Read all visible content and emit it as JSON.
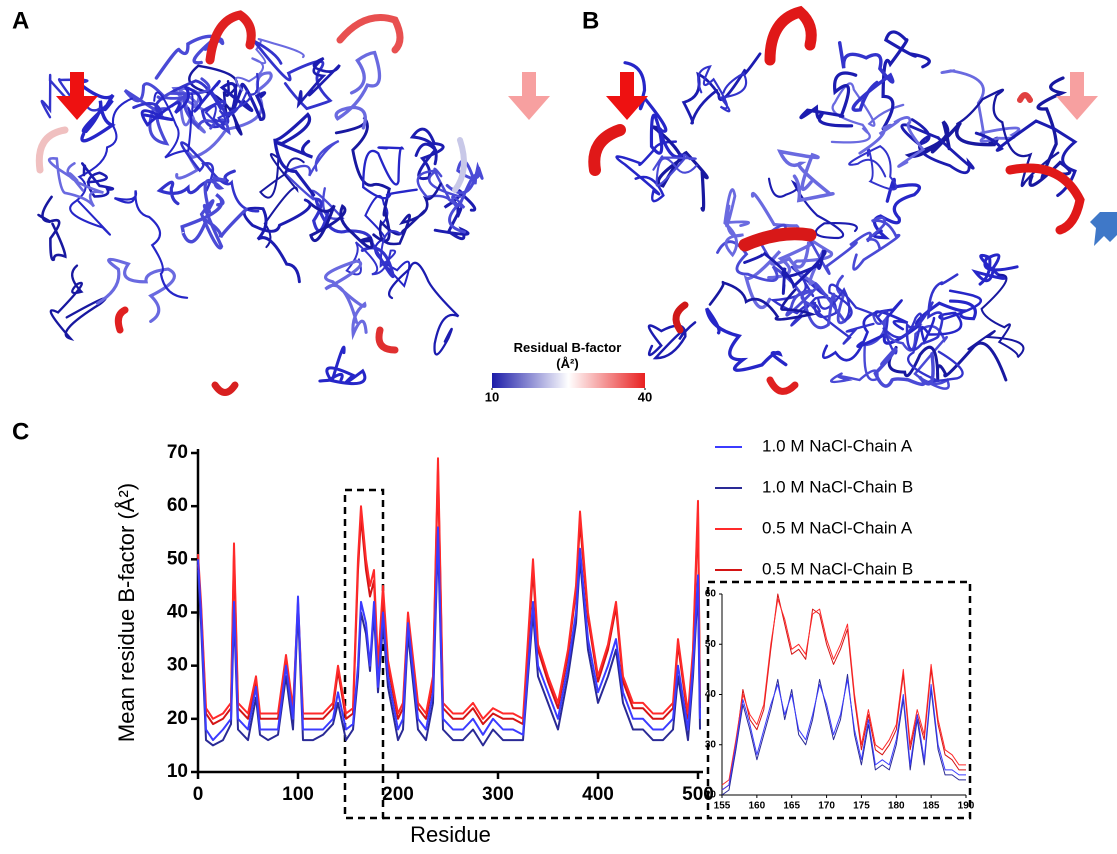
{
  "panels": {
    "a": "A",
    "b": "B",
    "c": "C"
  },
  "colorbar": {
    "title": "Residual B-factor (Å²)",
    "lim": [
      10,
      40
    ],
    "ticks": [
      10,
      40
    ],
    "colors": [
      "#1c1ca8",
      "#ffffff",
      "#e82020"
    ]
  },
  "chart_data": [
    {
      "type": "line",
      "xlabel": "Residue",
      "ylabel": "Mean residue B-factor (Å²)",
      "xlim": [
        0,
        505
      ],
      "ylim": [
        10,
        70
      ],
      "xticks": [
        0,
        100,
        200,
        300,
        400,
        500
      ],
      "yticks": [
        10,
        20,
        30,
        40,
        50,
        60,
        70
      ],
      "legend": "upper right",
      "x": [
        0,
        3,
        8,
        15,
        25,
        33,
        36,
        40,
        50,
        58,
        62,
        70,
        80,
        88,
        95,
        100,
        105,
        115,
        125,
        135,
        140,
        148,
        155,
        160,
        163,
        168,
        172,
        176,
        180,
        185,
        190,
        200,
        205,
        210,
        220,
        228,
        235,
        240,
        245,
        255,
        265,
        275,
        285,
        295,
        305,
        315,
        325,
        335,
        340,
        350,
        360,
        370,
        378,
        382,
        390,
        400,
        410,
        418,
        425,
        435,
        445,
        455,
        465,
        475,
        480,
        490,
        495,
        500,
        502
      ],
      "series": [
        {
          "name": "1.0 M NaCl-Chain A",
          "color": "#3b3bff",
          "values": [
            50,
            40,
            18,
            16,
            18,
            20,
            42,
            20,
            18,
            26,
            18,
            18,
            18,
            30,
            20,
            43,
            18,
            18,
            18,
            20,
            25,
            18,
            19,
            30,
            42,
            38,
            30,
            42,
            26,
            40,
            28,
            18,
            20,
            38,
            20,
            18,
            25,
            56,
            20,
            18,
            18,
            20,
            17,
            20,
            18,
            18,
            17,
            42,
            30,
            25,
            20,
            30,
            40,
            52,
            35,
            25,
            30,
            35,
            25,
            20,
            20,
            18,
            18,
            20,
            30,
            18,
            30,
            47,
            20
          ]
        },
        {
          "name": "1.0 M NaCl-Chain B",
          "color": "#2a2a96",
          "values": [
            48,
            38,
            16,
            15,
            16,
            19,
            40,
            18,
            16,
            24,
            17,
            16,
            17,
            28,
            18,
            41,
            16,
            16,
            17,
            19,
            23,
            16,
            18,
            28,
            40,
            36,
            29,
            40,
            25,
            38,
            26,
            16,
            18,
            36,
            18,
            16,
            23,
            54,
            18,
            16,
            16,
            18,
            15,
            18,
            16,
            16,
            16,
            40,
            28,
            23,
            18,
            28,
            38,
            50,
            33,
            23,
            28,
            33,
            23,
            18,
            18,
            16,
            16,
            18,
            28,
            16,
            28,
            45,
            18
          ]
        },
        {
          "name": "0.5 M NaCl-Chain A",
          "color": "#ff2a2a",
          "values": [
            51,
            42,
            22,
            20,
            21,
            23,
            53,
            23,
            21,
            28,
            21,
            21,
            21,
            32,
            22,
            42,
            21,
            21,
            21,
            23,
            30,
            21,
            22,
            50,
            60,
            50,
            45,
            48,
            30,
            45,
            31,
            21,
            23,
            40,
            23,
            21,
            28,
            69,
            23,
            21,
            21,
            23,
            20,
            22,
            21,
            21,
            20,
            50,
            34,
            28,
            23,
            33,
            45,
            59,
            40,
            28,
            34,
            42,
            28,
            23,
            23,
            21,
            21,
            23,
            35,
            21,
            33,
            61,
            23
          ]
        },
        {
          "name": "0.5 M NaCl-Chain B",
          "color": "#d41414",
          "values": [
            49,
            41,
            21,
            19,
            20,
            22,
            51,
            22,
            20,
            27,
            20,
            20,
            20,
            31,
            21,
            41,
            20,
            20,
            20,
            22,
            29,
            20,
            21,
            48,
            58,
            48,
            43,
            46,
            29,
            43,
            30,
            20,
            22,
            39,
            22,
            20,
            27,
            67,
            22,
            20,
            20,
            22,
            19,
            21,
            20,
            20,
            19,
            48,
            33,
            27,
            22,
            32,
            44,
            57,
            39,
            27,
            33,
            41,
            27,
            22,
            22,
            20,
            20,
            22,
            34,
            20,
            32,
            59,
            22
          ]
        }
      ]
    },
    {
      "type": "line",
      "xlim": [
        155,
        190
      ],
      "ylim": [
        20,
        60
      ],
      "xticks": [
        155,
        160,
        165,
        170,
        175,
        180,
        185,
        190
      ],
      "yticks": [
        20,
        30,
        40,
        50,
        60
      ],
      "x": [
        155,
        156,
        157,
        158,
        159,
        160,
        161,
        162,
        163,
        164,
        165,
        166,
        167,
        168,
        169,
        170,
        171,
        172,
        173,
        174,
        175,
        176,
        177,
        178,
        179,
        180,
        181,
        182,
        183,
        184,
        185,
        186,
        187,
        188,
        189,
        190
      ],
      "series": [
        {
          "color": "#3b3bff",
          "values": [
            21,
            22,
            30,
            39,
            34,
            28,
            33,
            38,
            42,
            36,
            40,
            33,
            31,
            36,
            42,
            38,
            32,
            36,
            43,
            33,
            27,
            35,
            26,
            27,
            26,
            31,
            40,
            26,
            36,
            27,
            42,
            30,
            25,
            25,
            24,
            24
          ]
        },
        {
          "color": "#2a2a96",
          "values": [
            20,
            21,
            29,
            38,
            33,
            27,
            32,
            37,
            43,
            35,
            41,
            32,
            30,
            35,
            43,
            37,
            31,
            35,
            44,
            32,
            26,
            34,
            25,
            26,
            25,
            30,
            39,
            25,
            35,
            26,
            41,
            29,
            24,
            24,
            23,
            23
          ]
        },
        {
          "color": "#ff2a2a",
          "values": [
            22,
            23,
            31,
            40,
            36,
            34,
            38,
            50,
            59,
            55,
            49,
            50,
            48,
            56,
            57,
            51,
            47,
            50,
            54,
            40,
            30,
            37,
            30,
            29,
            31,
            34,
            45,
            30,
            37,
            32,
            46,
            35,
            29,
            28,
            26,
            26
          ]
        },
        {
          "color": "#d41414",
          "values": [
            21,
            22,
            30,
            41,
            35,
            33,
            37,
            49,
            60,
            54,
            48,
            49,
            47,
            57,
            56,
            50,
            46,
            49,
            53,
            39,
            29,
            36,
            29,
            28,
            30,
            33,
            44,
            29,
            36,
            31,
            45,
            34,
            28,
            27,
            25,
            25
          ]
        }
      ]
    }
  ]
}
